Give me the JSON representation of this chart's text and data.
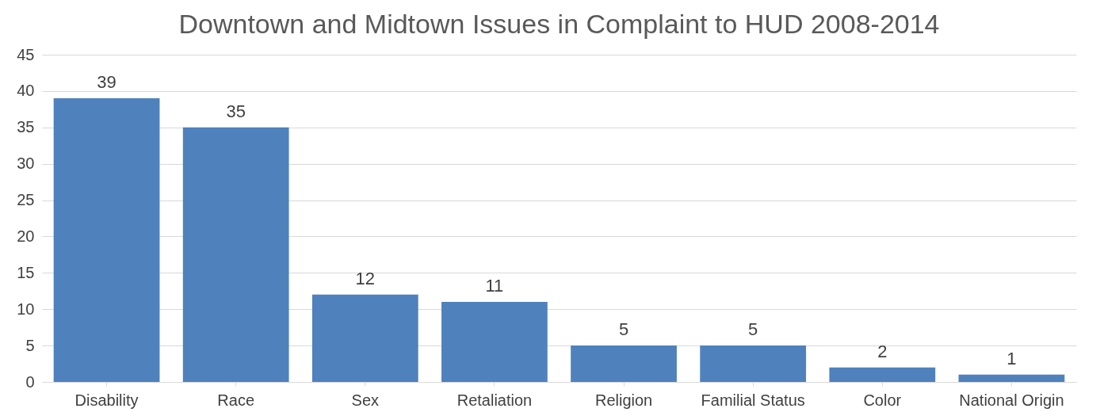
{
  "chart_data": {
    "type": "bar",
    "title": "Downtown and Midtown Issues in Complaint to HUD 2008-2014",
    "categories": [
      "Disability",
      "Race",
      "Sex",
      "Retaliation",
      "Religion",
      "Familial Status",
      "Color",
      "National Origin"
    ],
    "values": [
      39,
      35,
      12,
      11,
      5,
      5,
      2,
      1
    ],
    "color": "#4f81bd",
    "ylim": [
      0,
      45
    ],
    "yticks": [
      0,
      5,
      10,
      15,
      20,
      25,
      30,
      35,
      40,
      45
    ],
    "grid": "y",
    "data_labels": true
  }
}
